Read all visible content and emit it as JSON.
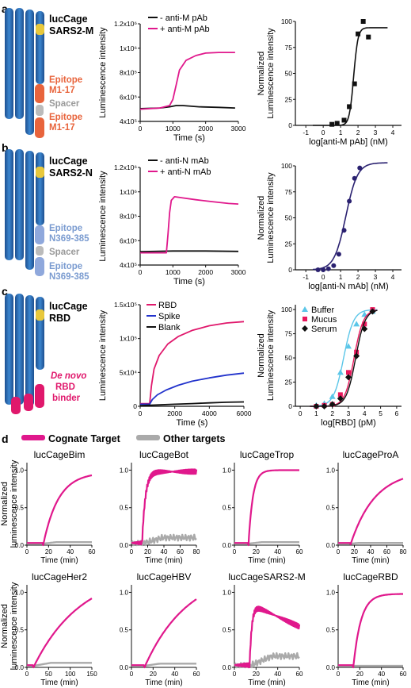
{
  "panels": {
    "a": {
      "letter": "a",
      "construct": [
        "lucCage",
        "SARS2-M"
      ],
      "epitope_top": [
        "Epitope",
        "M1-17"
      ],
      "spacer": "Spacer",
      "epitope_bottom": [
        "Epitope",
        "M1-17"
      ],
      "epitope_color": "#e8643c"
    },
    "b": {
      "letter": "b",
      "construct": [
        "lucCage",
        "SARS2-N"
      ],
      "epitope_top": [
        "Epitope",
        "N369-385"
      ],
      "spacer": "Spacer",
      "epitope_bottom": [
        "Epitope",
        "N369-385"
      ],
      "epitope_color": "#7a9bd0"
    },
    "c": {
      "letter": "c",
      "construct": [
        "lucCage",
        "RBD"
      ],
      "binder": [
        "De novo",
        "RBD",
        "binder"
      ],
      "binder_color": "#e0186c"
    },
    "d": {
      "letter": "d",
      "legend_cognate": "Cognate Target",
      "legend_other": "Other targets"
    }
  },
  "chart_data": [
    {
      "id": "a-kinetics",
      "type": "line",
      "xlabel": "Time (s)",
      "ylabel": "Luminescence intensity",
      "xticks": [
        "0",
        "1000",
        "2000",
        "3000"
      ],
      "yticks": [
        "4x10⁵",
        "6x10⁵",
        "8x10⁵",
        "1x10⁶",
        "1.2x10⁶"
      ],
      "xlim": [
        0,
        3000
      ],
      "ylim": [
        400000,
        1200000
      ],
      "legend": [
        {
          "sign": "-",
          "name": "anti-M pAb"
        },
        {
          "sign": "+",
          "name": "anti-M pAb"
        }
      ],
      "series": [
        {
          "name": "- anti-M pAb",
          "color": "#111111",
          "x": [
            0,
            600,
            900,
            1100,
            1300,
            1800,
            2400,
            2900
          ],
          "y": [
            505000,
            510000,
            520000,
            530000,
            530000,
            520000,
            515000,
            510000
          ]
        },
        {
          "name": "+ anti-M pAb",
          "color": "#e0188c",
          "x": [
            0,
            600,
            900,
            1000,
            1100,
            1200,
            1400,
            1700,
            2000,
            2400,
            2900
          ],
          "y": [
            500000,
            510000,
            530000,
            580000,
            700000,
            820000,
            900000,
            940000,
            960000,
            965000,
            965000
          ]
        }
      ]
    },
    {
      "id": "a-dose",
      "type": "scatter",
      "xlabel": "log[anti-M pAb] (nM)",
      "ylabel": "Normalized Luminescence intensity",
      "xticks": [
        "-1",
        "0",
        "1",
        "2",
        "3",
        "4"
      ],
      "yticks": [
        "0",
        "25",
        "50",
        "75",
        "100"
      ],
      "xlim": [
        -1.6,
        4.5
      ],
      "ylim": [
        0,
        100
      ],
      "points": {
        "x": [
          0.5,
          0.8,
          1.2,
          1.5,
          1.8,
          2.0,
          2.3,
          2.6
        ],
        "y": [
          1,
          2,
          5,
          18,
          40,
          88,
          100,
          85
        ]
      },
      "fit": {
        "ec50": 1.75,
        "hill": 3.5,
        "top": 94,
        "bottom": 0,
        "color": "#111111"
      }
    },
    {
      "id": "b-kinetics",
      "type": "line",
      "xlabel": "Time (s)",
      "ylabel": "Luminescence intensity",
      "xticks": [
        "0",
        "1000",
        "2000",
        "3000"
      ],
      "yticks": [
        "4x10⁵",
        "6x10⁵",
        "8x10⁵",
        "1x10⁶",
        "1.2x10⁶"
      ],
      "xlim": [
        0,
        3000
      ],
      "ylim": [
        400000,
        1200000
      ],
      "legend": [
        {
          "sign": "-",
          "name": "anti-N mAb"
        },
        {
          "sign": "+",
          "name": "anti-N mAb"
        }
      ],
      "series": [
        {
          "name": "- anti-N mAb",
          "color": "#111111",
          "x": [
            0,
            1000,
            2000,
            3000
          ],
          "y": [
            510000,
            515000,
            515000,
            512000
          ]
        },
        {
          "name": "+ anti-N mAb",
          "color": "#e0188c",
          "x": [
            0,
            800,
            850,
            900,
            950,
            1050,
            1300,
            1700,
            2200,
            2700,
            3000
          ],
          "y": [
            500000,
            500000,
            650000,
            830000,
            930000,
            960000,
            950000,
            935000,
            920000,
            905000,
            900000
          ]
        }
      ]
    },
    {
      "id": "b-dose",
      "type": "scatter",
      "xlabel": "log[anti-N mAb] (nM)",
      "ylabel": "Normalized Luminescence intensity",
      "xticks": [
        "-1",
        "0",
        "1",
        "2",
        "3",
        "4"
      ],
      "yticks": [
        "0",
        "25",
        "50",
        "75",
        "100"
      ],
      "xlim": [
        -1.6,
        4.5
      ],
      "ylim": [
        0,
        100
      ],
      "points": {
        "x": [
          -0.3,
          0.0,
          0.3,
          0.6,
          0.9,
          1.2,
          1.5,
          1.8,
          2.1
        ],
        "y": [
          0,
          0,
          1,
          4,
          15,
          38,
          66,
          88,
          98
        ]
      },
      "fit": {
        "ec50": 1.3,
        "hill": 1.3,
        "top": 103,
        "bottom": 0,
        "color": "#2a2170"
      }
    },
    {
      "id": "c-kinetics",
      "type": "line",
      "xlabel": "Time (s)",
      "ylabel": "Luminescence intensity",
      "xticks": [
        "0",
        "2000",
        "4000",
        "6000"
      ],
      "yticks": [
        "0",
        "5x10⁴",
        "1x10⁵",
        "1.5x10⁵"
      ],
      "xlim": [
        0,
        6000
      ],
      "ylim": [
        0,
        150000
      ],
      "legend": [
        {
          "sign": "",
          "name": "RBD"
        },
        {
          "sign": "",
          "name": "Spike"
        },
        {
          "sign": "",
          "name": "Blank"
        }
      ],
      "series": [
        {
          "name": "RBD",
          "color": "#e0186c",
          "x": [
            0,
            550,
            650,
            800,
            1100,
            1600,
            2200,
            3000,
            4000,
            5000,
            6000
          ],
          "y": [
            4000,
            4000,
            30000,
            55000,
            75000,
            92000,
            103000,
            112000,
            119000,
            123000,
            125000
          ]
        },
        {
          "name": "Spike",
          "color": "#2233cc",
          "x": [
            0,
            550,
            700,
            1000,
            1500,
            2200,
            3000,
            4000,
            5000,
            6000
          ],
          "y": [
            3000,
            3000,
            10000,
            17000,
            24000,
            31000,
            37000,
            42000,
            46000,
            49000
          ]
        },
        {
          "name": "Blank",
          "color": "#111111",
          "x": [
            0,
            1000,
            2000,
            3000,
            4000,
            5000,
            6000
          ],
          "y": [
            1000,
            2000,
            3000,
            4000,
            5000,
            6000,
            6500
          ]
        }
      ]
    },
    {
      "id": "c-dose",
      "type": "scatter",
      "xlabel": "log[RBD] (pM)",
      "ylabel": "Normalized Luminescence intensity",
      "xticks": [
        "0",
        "1",
        "2",
        "3",
        "4",
        "5",
        "6"
      ],
      "yticks": [
        "0",
        "25",
        "50",
        "75",
        "100"
      ],
      "xlim": [
        -0.3,
        6.3
      ],
      "ylim": [
        0,
        105
      ],
      "legend": [
        {
          "name": "Buffer"
        },
        {
          "name": "Mucus"
        },
        {
          "name": "Serum"
        }
      ],
      "series": [
        {
          "name": "Buffer",
          "marker": "triangle",
          "color": "#5bc6e8",
          "x": [
            1.0,
            1.5,
            2.0,
            2.5,
            3.0,
            3.5,
            4.0,
            4.5
          ],
          "y": [
            1,
            3,
            10,
            35,
            62,
            85,
            95,
            98
          ],
          "fit": {
            "ec50": 2.7,
            "hill": 1.4
          }
        },
        {
          "name": "Mucus",
          "marker": "square",
          "color": "#e8185c",
          "x": [
            1.0,
            1.5,
            2.0,
            2.5,
            3.0,
            3.5,
            4.0,
            4.5
          ],
          "y": [
            0,
            1,
            2,
            12,
            35,
            56,
            85,
            100
          ],
          "fit": {
            "ec50": 3.35,
            "hill": 1.5
          }
        },
        {
          "name": "Serum",
          "marker": "diamond",
          "color": "#111111",
          "x": [
            1.0,
            1.5,
            2.0,
            2.5,
            3.0,
            3.5,
            4.0,
            4.5
          ],
          "y": [
            0,
            0,
            2,
            8,
            30,
            52,
            80,
            98
          ],
          "fit": {
            "ec50": 3.45,
            "hill": 1.5
          }
        }
      ]
    },
    {
      "id": "d-grid",
      "type": "line",
      "ylabel": "Normalized luminescence intensity",
      "xlabel": "Time (min)",
      "yticks": [
        "0.0",
        "0.5",
        "1.0"
      ],
      "subplots": [
        {
          "title": "lucCageBim",
          "xticks": [
            "0",
            "20",
            "40",
            "60"
          ],
          "xmax": 60,
          "onset": 15,
          "tau": 14,
          "plateau": 0.97,
          "other": 0.04,
          "noisy": false
        },
        {
          "title": "lucCageBot",
          "xticks": [
            "0",
            "20",
            "40",
            "60",
            "80"
          ],
          "xmax": 80,
          "onset": 13,
          "tau": 4,
          "plateau": 0.98,
          "other": 0.1,
          "noisy": true
        },
        {
          "title": "lucCageTrop",
          "xticks": [
            "0",
            "20",
            "40",
            "60"
          ],
          "xmax": 60,
          "onset": 13,
          "tau": 4,
          "plateau": 1.0,
          "other": 0.04,
          "noisy": false
        },
        {
          "title": "lucCageProA",
          "xticks": [
            "0",
            "20",
            "40",
            "60",
            "80"
          ],
          "xmax": 80,
          "onset": 15,
          "tau": 30,
          "plateau": 1.0,
          "other": 0.03,
          "noisy": false
        },
        {
          "title": "lucCageHer2",
          "xticks": [
            "0",
            "50",
            "100",
            "150"
          ],
          "xmax": 150,
          "onset": 15,
          "tau": 110,
          "plateau": 1.3,
          "other": 0.06,
          "noisy": false
        },
        {
          "title": "lucCageHBV",
          "xticks": [
            "0",
            "20",
            "40",
            "60"
          ],
          "xmax": 60,
          "onset": 12,
          "tau": 40,
          "plateau": 1.3,
          "other": 0.05,
          "noisy": false
        },
        {
          "title": "lucCageSARS2-M",
          "xticks": [
            "0",
            "20",
            "40",
            "60"
          ],
          "xmax": 60,
          "onset": 14,
          "tau": 2,
          "plateau": 0.85,
          "other": 0.15,
          "noisy": true,
          "decay": true
        },
        {
          "title": "lucCageRBD",
          "xticks": [
            "0",
            "20",
            "40",
            "60"
          ],
          "xmax": 60,
          "onset": 14,
          "tau": 7,
          "plateau": 0.98,
          "other": 0.02,
          "noisy": false
        }
      ]
    }
  ]
}
